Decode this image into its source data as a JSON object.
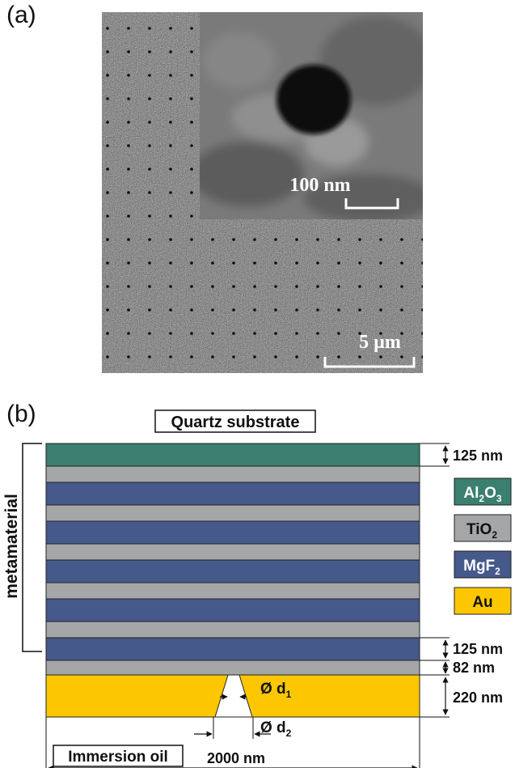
{
  "panel_a": {
    "label": "(a)",
    "inset_scale_label": "100 nm",
    "main_scale_label": "5 µm"
  },
  "panel_b": {
    "label": "(b)",
    "top_label": "Quartz substrate",
    "side_label": "metamaterial",
    "bottom_label": "Immersion oil",
    "dim_top": "125 nm",
    "dim_lower_mgf2": "125 nm",
    "dim_lower_tio2": "82 nm",
    "dim_au": "220 nm",
    "dim_width": "2000 nm",
    "aperture_top": "Ø d",
    "aperture_top_sub": "1",
    "aperture_bottom": "Ø d",
    "aperture_bottom_sub": "2",
    "legend": [
      {
        "base": "Al",
        "sub1": "2",
        "mid": "O",
        "sub2": "3",
        "color": "#3a7f6f"
      },
      {
        "base": "TiO",
        "sub1": "2",
        "mid": "",
        "sub2": "",
        "color": "#a4a6a8"
      },
      {
        "base": "MgF",
        "sub1": "2",
        "mid": "",
        "sub2": "",
        "color": "#45598a"
      },
      {
        "base": "Au",
        "sub1": "",
        "mid": "",
        "sub2": "",
        "color": "#fcc700"
      }
    ],
    "colors": {
      "al2o3": "#3a7f6f",
      "tio2": "#a4a6a8",
      "mgf2": "#45598a",
      "au": "#fcc700"
    }
  }
}
